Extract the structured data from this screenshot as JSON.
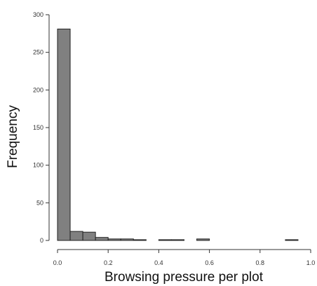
{
  "chart_data": {
    "type": "bar",
    "subtype": "histogram",
    "title": "",
    "xlabel": "Browsing pressure per plot",
    "ylabel": "Frequency",
    "xlim": [
      0,
      1.0
    ],
    "ylim": [
      0,
      300
    ],
    "x_ticks": [
      {
        "value": 0.0,
        "label": "0.0"
      },
      {
        "value": 0.2,
        "label": "0.2"
      },
      {
        "value": 0.4,
        "label": "0.4"
      },
      {
        "value": 0.6,
        "label": "0.6"
      },
      {
        "value": 0.8,
        "label": "0.8"
      },
      {
        "value": 1.0,
        "label": "1.0"
      }
    ],
    "y_ticks": [
      {
        "value": 0,
        "label": "0"
      },
      {
        "value": 50,
        "label": "50"
      },
      {
        "value": 100,
        "label": "100"
      },
      {
        "value": 150,
        "label": "150"
      },
      {
        "value": 200,
        "label": "200"
      },
      {
        "value": 250,
        "label": "250"
      },
      {
        "value": 300,
        "label": "300"
      }
    ],
    "bin_width": 0.05,
    "bins": [
      {
        "start": 0.0,
        "end": 0.05,
        "count": 281
      },
      {
        "start": 0.05,
        "end": 0.1,
        "count": 12
      },
      {
        "start": 0.1,
        "end": 0.15,
        "count": 11
      },
      {
        "start": 0.15,
        "end": 0.2,
        "count": 4
      },
      {
        "start": 0.2,
        "end": 0.25,
        "count": 2
      },
      {
        "start": 0.25,
        "end": 0.3,
        "count": 2
      },
      {
        "start": 0.3,
        "end": 0.35,
        "count": 1
      },
      {
        "start": 0.35,
        "end": 0.4,
        "count": 0
      },
      {
        "start": 0.4,
        "end": 0.45,
        "count": 1
      },
      {
        "start": 0.45,
        "end": 0.5,
        "count": 1
      },
      {
        "start": 0.5,
        "end": 0.55,
        "count": 0
      },
      {
        "start": 0.55,
        "end": 0.6,
        "count": 2
      },
      {
        "start": 0.6,
        "end": 0.65,
        "count": 0
      },
      {
        "start": 0.65,
        "end": 0.7,
        "count": 0
      },
      {
        "start": 0.7,
        "end": 0.75,
        "count": 0
      },
      {
        "start": 0.75,
        "end": 0.8,
        "count": 0
      },
      {
        "start": 0.8,
        "end": 0.85,
        "count": 0
      },
      {
        "start": 0.85,
        "end": 0.9,
        "count": 0
      },
      {
        "start": 0.9,
        "end": 0.95,
        "count": 1
      },
      {
        "start": 0.95,
        "end": 1.0,
        "count": 0
      }
    ],
    "bar_color": "#808080",
    "grid": false,
    "legend": "none"
  }
}
